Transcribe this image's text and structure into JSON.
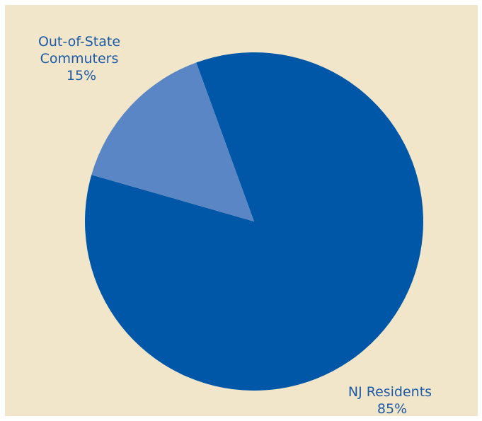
{
  "chart_data": {
    "type": "pie",
    "title": "",
    "slices": [
      {
        "name": "NJ Residents",
        "value": 85,
        "percent_label": "85%",
        "color": "#0057a8"
      },
      {
        "name": "Out-of-State Commuters",
        "label_lines": [
          "Out-of-State",
          "Commuters"
        ],
        "value": 15,
        "percent_label": "15%",
        "color": "#5b86c6"
      }
    ],
    "legend": "none",
    "data_labels": "outside"
  },
  "colors": {
    "background": "#f1e6c9",
    "label_text": "#1d5aa6"
  }
}
